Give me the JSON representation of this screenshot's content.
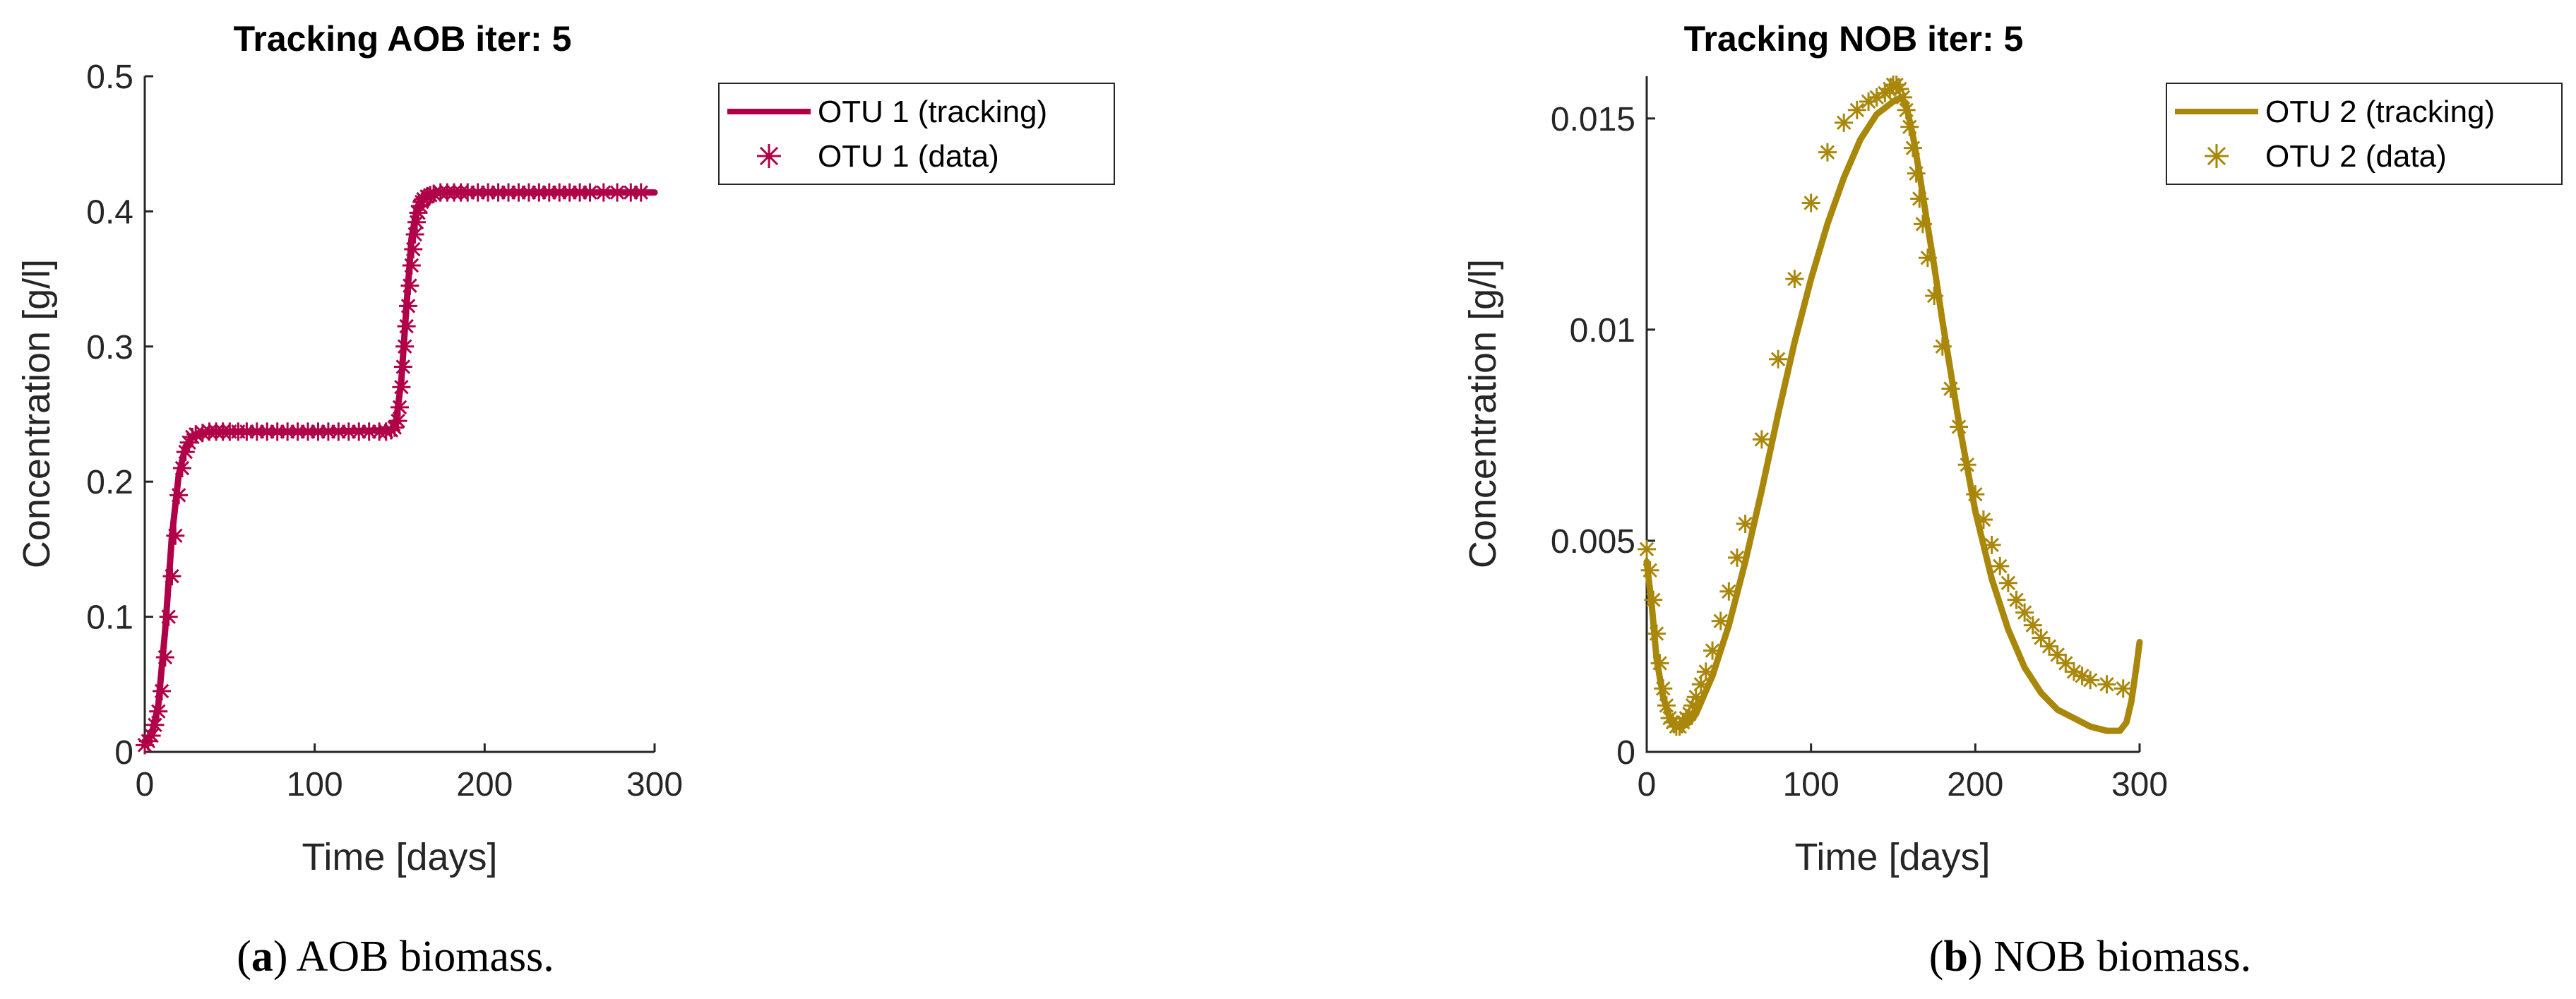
{
  "colors": {
    "aob": "#B00047",
    "nob": "#A8870A"
  },
  "chart_data": [
    {
      "type": "line",
      "title": "Tracking AOB iter: 5",
      "xlabel": "Time [days]",
      "ylabel": "Concentration [g/l]",
      "xlim": [
        0,
        300
      ],
      "ylim": [
        0,
        0.5
      ],
      "xticks": [
        "0",
        "100",
        "200",
        "300"
      ],
      "yticks": [
        "0",
        "0.1",
        "0.2",
        "0.3",
        "0.4",
        "0.5"
      ],
      "legend_position": "outside-right-top",
      "grid": false,
      "caption_label": "a",
      "caption_text": ") AOB biomass.",
      "series": [
        {
          "name": "OTU 1 (tracking)",
          "style": "line",
          "x": [
            0,
            4,
            8,
            12,
            16,
            20,
            24,
            28,
            32,
            40,
            60,
            100,
            145,
            148,
            151,
            154,
            157,
            160,
            163,
            166,
            170,
            180,
            220,
            260,
            300
          ],
          "y": [
            0.008,
            0.012,
            0.035,
            0.09,
            0.16,
            0.205,
            0.226,
            0.233,
            0.236,
            0.237,
            0.237,
            0.237,
            0.238,
            0.246,
            0.275,
            0.33,
            0.38,
            0.402,
            0.41,
            0.413,
            0.414,
            0.414,
            0.414,
            0.414,
            0.414
          ]
        },
        {
          "name": "OTU 1 (data)",
          "style": "marker",
          "x": [
            0,
            2,
            4,
            6,
            8,
            10,
            12,
            14,
            16,
            18,
            20,
            22,
            24,
            26,
            28,
            30,
            34,
            38,
            42,
            46,
            50,
            55,
            60,
            66,
            72,
            78,
            84,
            90,
            96,
            102,
            108,
            114,
            120,
            126,
            132,
            138,
            142,
            145,
            147,
            149,
            150,
            151,
            152,
            153,
            154,
            155,
            156,
            157,
            158,
            159,
            160,
            161,
            162,
            163,
            164,
            166,
            168,
            170,
            174,
            178,
            182,
            186,
            190,
            196,
            202,
            208,
            214,
            220,
            226,
            232,
            238,
            244,
            250,
            256,
            262,
            270,
            278,
            286,
            292
          ],
          "y": [
            0.005,
            0.008,
            0.012,
            0.02,
            0.03,
            0.045,
            0.07,
            0.1,
            0.13,
            0.16,
            0.19,
            0.21,
            0.222,
            0.229,
            0.233,
            0.235,
            0.236,
            0.237,
            0.237,
            0.237,
            0.237,
            0.237,
            0.237,
            0.237,
            0.237,
            0.237,
            0.237,
            0.237,
            0.237,
            0.237,
            0.237,
            0.237,
            0.237,
            0.237,
            0.237,
            0.237,
            0.237,
            0.238,
            0.24,
            0.245,
            0.255,
            0.27,
            0.285,
            0.3,
            0.315,
            0.33,
            0.345,
            0.36,
            0.372,
            0.383,
            0.392,
            0.399,
            0.404,
            0.407,
            0.409,
            0.411,
            0.412,
            0.413,
            0.414,
            0.414,
            0.414,
            0.414,
            0.414,
            0.414,
            0.414,
            0.414,
            0.414,
            0.414,
            0.414,
            0.414,
            0.414,
            0.414,
            0.414,
            0.414,
            0.414,
            0.414,
            0.414,
            0.414,
            0.414
          ]
        }
      ]
    },
    {
      "type": "line",
      "title": "Tracking NOB iter: 5",
      "xlabel": "Time [days]",
      "ylabel": "Concentration [g/l]",
      "xlim": [
        0,
        300
      ],
      "ylim": [
        0,
        0.016
      ],
      "xticks": [
        "0",
        "100",
        "200",
        "300"
      ],
      "yticks": [
        "0",
        "0.005",
        "0.01",
        "0.015"
      ],
      "legend_position": "outside-right-top",
      "grid": false,
      "caption_label": "b",
      "caption_text": ") NOB biomass.",
      "series": [
        {
          "name": "OTU 2 (tracking)",
          "style": "line",
          "x": [
            0,
            3,
            6,
            10,
            14,
            18,
            22,
            26,
            30,
            40,
            50,
            60,
            70,
            80,
            90,
            100,
            110,
            120,
            130,
            140,
            150,
            155,
            158,
            162,
            166,
            170,
            175,
            180,
            190,
            200,
            210,
            220,
            230,
            240,
            250,
            260,
            270,
            280,
            288,
            292,
            295,
            298,
            300
          ],
          "y": [
            0.0045,
            0.0035,
            0.0022,
            0.0013,
            0.0008,
            0.0006,
            0.0006,
            0.0007,
            0.0009,
            0.0018,
            0.003,
            0.0045,
            0.0062,
            0.008,
            0.0097,
            0.0112,
            0.0125,
            0.0136,
            0.0145,
            0.0151,
            0.0154,
            0.0155,
            0.0153,
            0.0146,
            0.0137,
            0.0127,
            0.0115,
            0.0102,
            0.0078,
            0.0057,
            0.0041,
            0.0029,
            0.002,
            0.0014,
            0.001,
            0.0008,
            0.0006,
            0.0005,
            0.0005,
            0.0007,
            0.0012,
            0.002,
            0.0026
          ]
        },
        {
          "name": "OTU 2 (data)",
          "style": "marker",
          "x": [
            0,
            2,
            4,
            6,
            8,
            10,
            12,
            14,
            16,
            18,
            20,
            22,
            24,
            26,
            28,
            30,
            33,
            36,
            40,
            45,
            50,
            55,
            60,
            70,
            80,
            90,
            100,
            110,
            120,
            128,
            135,
            140,
            145,
            148,
            150,
            152,
            154,
            156,
            158,
            160,
            162,
            164,
            166,
            168,
            171,
            175,
            180,
            185,
            190,
            195,
            200,
            205,
            210,
            215,
            220,
            225,
            230,
            235,
            240,
            245,
            250,
            255,
            260,
            265,
            270,
            280,
            290
          ],
          "y": [
            0.0048,
            0.0043,
            0.0036,
            0.0028,
            0.0021,
            0.0015,
            0.0011,
            0.0008,
            0.0007,
            0.0006,
            0.0006,
            0.0007,
            0.0008,
            0.0009,
            0.0011,
            0.0013,
            0.0016,
            0.0019,
            0.0024,
            0.0031,
            0.0038,
            0.0046,
            0.0054,
            0.0074,
            0.0093,
            0.0112,
            0.013,
            0.0142,
            0.0149,
            0.0152,
            0.0154,
            0.0155,
            0.0156,
            0.0157,
            0.0158,
            0.0158,
            0.0157,
            0.0155,
            0.0152,
            0.0148,
            0.0143,
            0.0137,
            0.0131,
            0.0125,
            0.0117,
            0.0108,
            0.0096,
            0.0086,
            0.0077,
            0.0068,
            0.0061,
            0.0055,
            0.0049,
            0.0044,
            0.004,
            0.0036,
            0.0033,
            0.003,
            0.0027,
            0.0025,
            0.0023,
            0.0021,
            0.0019,
            0.0018,
            0.0017,
            0.0016,
            0.0015
          ]
        }
      ]
    }
  ]
}
